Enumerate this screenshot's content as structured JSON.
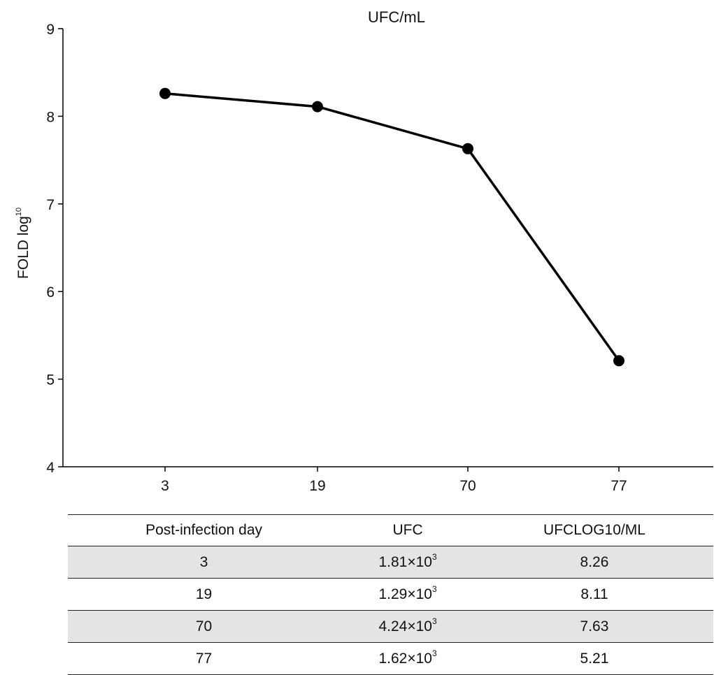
{
  "chart_data": {
    "type": "line",
    "title": "UFC/mL",
    "xlabel": "",
    "ylabel": "FOLD log",
    "ylabel_superscript": "10",
    "categories": [
      "3",
      "19",
      "70",
      "77"
    ],
    "series": [
      {
        "values": [
          8.26,
          8.11,
          7.63,
          5.21
        ],
        "color": "#000000"
      }
    ],
    "ylim": [
      4,
      9
    ],
    "yticks": [
      4,
      5,
      6,
      7,
      8,
      9
    ],
    "grid": false,
    "marker": "filled-circle"
  },
  "table": {
    "headers": [
      "Post-infection day",
      "UFC",
      "UFCLOG10/ML"
    ],
    "rows": [
      {
        "day": "3",
        "ufc_mantissa": "1.81",
        "ufc_base": "×10",
        "ufc_exp": "3",
        "log": "8.26"
      },
      {
        "day": "19",
        "ufc_mantissa": "1.29",
        "ufc_base": "×10",
        "ufc_exp": "3",
        "log": "8.11"
      },
      {
        "day": "70",
        "ufc_mantissa": "4.24",
        "ufc_base": "×10",
        "ufc_exp": "3",
        "log": "7.63"
      },
      {
        "day": "77",
        "ufc_mantissa": "1.62",
        "ufc_base": "×10",
        "ufc_exp": "3",
        "log": "5.21"
      }
    ]
  },
  "colors": {
    "row_shade": "#e4e4e4",
    "line": "#000000",
    "axis": "#000000"
  }
}
